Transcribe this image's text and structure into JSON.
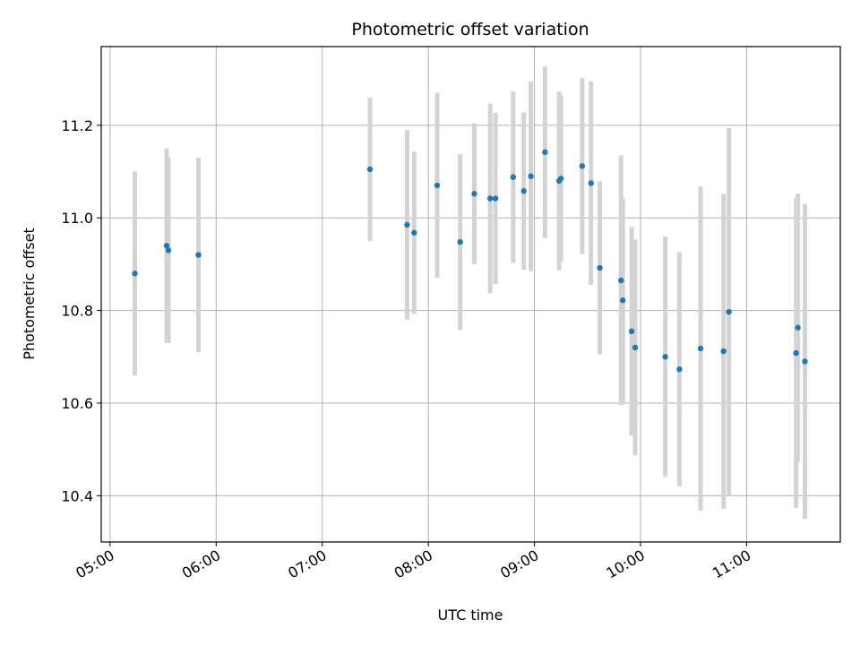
{
  "chart_data": {
    "type": "scatter",
    "title": "Photometric offset variation",
    "xlabel": "UTC time",
    "ylabel": "Photometric offset",
    "xlim": [
      "04:55",
      "11:53"
    ],
    "ylim": [
      10.3,
      11.37
    ],
    "xticks": [
      "05:00",
      "06:00",
      "07:00",
      "08:00",
      "09:00",
      "10:00",
      "11:00"
    ],
    "yticks": [
      10.4,
      10.6,
      10.8,
      11.0,
      11.2
    ],
    "grid": true,
    "colors": {
      "point": "#1f77b4",
      "errorbar": "#d3d3d3",
      "grid": "#b0b0b0"
    },
    "points": [
      {
        "x": "05:14",
        "y": 10.88,
        "err": 0.22
      },
      {
        "x": "05:32",
        "y": 10.94,
        "err": 0.21
      },
      {
        "x": "05:33",
        "y": 10.93,
        "err": 0.2
      },
      {
        "x": "05:50",
        "y": 10.92,
        "err": 0.21
      },
      {
        "x": "07:27",
        "y": 11.105,
        "err": 0.155
      },
      {
        "x": "07:48",
        "y": 10.985,
        "err": 0.205
      },
      {
        "x": "07:52",
        "y": 10.968,
        "err": 0.175
      },
      {
        "x": "08:05",
        "y": 11.07,
        "err": 0.2
      },
      {
        "x": "08:18",
        "y": 10.948,
        "err": 0.19
      },
      {
        "x": "08:26",
        "y": 11.052,
        "err": 0.152
      },
      {
        "x": "08:35",
        "y": 11.042,
        "err": 0.205
      },
      {
        "x": "08:38",
        "y": 11.042,
        "err": 0.185
      },
      {
        "x": "08:48",
        "y": 11.088,
        "err": 0.185
      },
      {
        "x": "08:54",
        "y": 11.058,
        "err": 0.17
      },
      {
        "x": "08:58",
        "y": 11.09,
        "err": 0.205
      },
      {
        "x": "09:06",
        "y": 11.142,
        "err": 0.185
      },
      {
        "x": "09:14",
        "y": 11.08,
        "err": 0.193
      },
      {
        "x": "09:15",
        "y": 11.085,
        "err": 0.18
      },
      {
        "x": "09:27",
        "y": 11.112,
        "err": 0.19
      },
      {
        "x": "09:32",
        "y": 11.075,
        "err": 0.22
      },
      {
        "x": "09:37",
        "y": 10.892,
        "err": 0.187
      },
      {
        "x": "09:49",
        "y": 10.865,
        "err": 0.27
      },
      {
        "x": "09:50",
        "y": 10.822,
        "err": 0.22
      },
      {
        "x": "09:55",
        "y": 10.755,
        "err": 0.225
      },
      {
        "x": "09:57",
        "y": 10.72,
        "err": 0.233
      },
      {
        "x": "10:14",
        "y": 10.7,
        "err": 0.26
      },
      {
        "x": "10:22",
        "y": 10.673,
        "err": 0.253
      },
      {
        "x": "10:34",
        "y": 10.718,
        "err": 0.35
      },
      {
        "x": "10:47",
        "y": 10.712,
        "err": 0.34
      },
      {
        "x": "10:50",
        "y": 10.797,
        "err": 0.397
      },
      {
        "x": "11:28",
        "y": 10.708,
        "err": 0.335
      },
      {
        "x": "11:29",
        "y": 10.763,
        "err": 0.29
      },
      {
        "x": "11:33",
        "y": 10.69,
        "err": 0.34
      }
    ]
  }
}
